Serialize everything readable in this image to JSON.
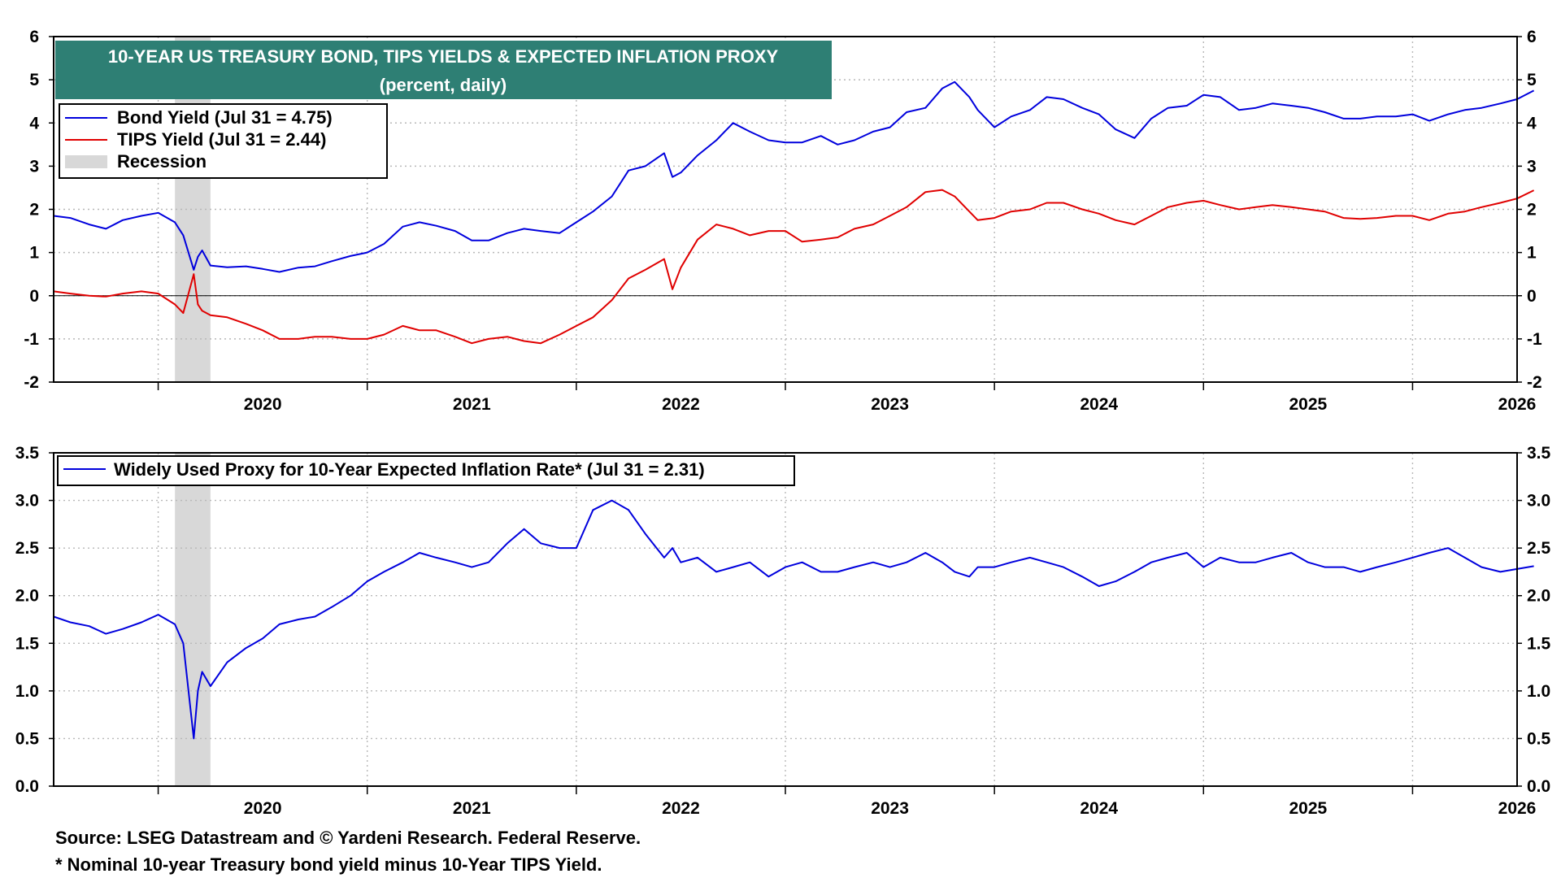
{
  "chart_data": [
    {
      "type": "line",
      "title": "10-YEAR US TREASURY BOND, TIPS YIELDS & EXPECTED INFLATION PROXY",
      "subtitle": "(percent, daily)",
      "ylim": [
        -2,
        6
      ],
      "yticks": [
        "-2",
        "-1",
        "0",
        "1",
        "2",
        "3",
        "4",
        "5",
        "6"
      ],
      "xlim": [
        2019.5,
        2026.5
      ],
      "xtick_labels": [
        "2020",
        "2021",
        "2022",
        "2023",
        "2024",
        "2025",
        "2026"
      ],
      "grid": true,
      "legend_position": "top-left",
      "recession_label": "Recession",
      "recession": [
        2020.08,
        2020.25
      ],
      "series": [
        {
          "name": "Bond Yield (Jul 31 = 4.75)",
          "color": "#0000dd",
          "x": [
            2019.5,
            2019.58,
            2019.67,
            2019.75,
            2019.83,
            2019.92,
            2020.0,
            2020.08,
            2020.12,
            2020.17,
            2020.19,
            2020.21,
            2020.25,
            2020.33,
            2020.42,
            2020.5,
            2020.58,
            2020.67,
            2020.75,
            2020.83,
            2020.92,
            2021.0,
            2021.08,
            2021.17,
            2021.25,
            2021.33,
            2021.42,
            2021.5,
            2021.58,
            2021.67,
            2021.75,
            2021.83,
            2021.92,
            2022.0,
            2022.08,
            2022.17,
            2022.25,
            2022.33,
            2022.42,
            2022.46,
            2022.5,
            2022.58,
            2022.67,
            2022.75,
            2022.83,
            2022.92,
            2023.0,
            2023.08,
            2023.17,
            2023.25,
            2023.33,
            2023.42,
            2023.5,
            2023.58,
            2023.67,
            2023.75,
            2023.81,
            2023.88,
            2023.92,
            2024.0,
            2024.08,
            2024.17,
            2024.25,
            2024.33,
            2024.42,
            2024.5,
            2024.58,
            2024.67,
            2024.75,
            2024.83,
            2024.92,
            2025.0,
            2025.08,
            2025.17,
            2025.25,
            2025.33,
            2025.42,
            2025.5,
            2025.58,
            2025.67,
            2025.75,
            2025.83,
            2025.92,
            2026.0,
            2026.08,
            2026.17,
            2026.25,
            2026.33,
            2026.42,
            2026.5,
            2026.58
          ],
          "values": [
            1.85,
            1.8,
            1.65,
            1.55,
            1.75,
            1.85,
            1.92,
            1.7,
            1.4,
            0.6,
            0.9,
            1.05,
            0.7,
            0.66,
            0.68,
            0.62,
            0.55,
            0.65,
            0.68,
            0.8,
            0.92,
            1.0,
            1.2,
            1.6,
            1.7,
            1.62,
            1.5,
            1.28,
            1.28,
            1.45,
            1.55,
            1.5,
            1.45,
            1.7,
            1.95,
            2.3,
            2.9,
            3.0,
            3.3,
            2.75,
            2.85,
            3.25,
            3.6,
            4.0,
            3.8,
            3.6,
            3.55,
            3.55,
            3.7,
            3.5,
            3.6,
            3.8,
            3.9,
            4.25,
            4.35,
            4.8,
            4.95,
            4.6,
            4.3,
            3.9,
            4.15,
            4.3,
            4.6,
            4.55,
            4.35,
            4.2,
            3.85,
            3.65,
            4.1,
            4.35,
            4.4,
            4.65,
            4.6,
            4.3,
            4.35,
            4.45,
            4.4,
            4.35,
            4.25,
            4.1,
            4.1,
            4.15,
            4.15,
            4.2,
            4.05,
            4.2,
            4.3,
            4.35,
            4.45,
            4.55,
            4.75
          ]
        },
        {
          "name": "TIPS Yield (Jul 31 = 2.44)",
          "color": "#e00000",
          "x": [
            2019.5,
            2019.58,
            2019.67,
            2019.75,
            2019.83,
            2019.92,
            2020.0,
            2020.08,
            2020.12,
            2020.17,
            2020.19,
            2020.21,
            2020.25,
            2020.33,
            2020.42,
            2020.5,
            2020.58,
            2020.67,
            2020.75,
            2020.83,
            2020.92,
            2021.0,
            2021.08,
            2021.17,
            2021.25,
            2021.33,
            2021.42,
            2021.5,
            2021.58,
            2021.67,
            2021.75,
            2021.83,
            2021.92,
            2022.0,
            2022.08,
            2022.17,
            2022.25,
            2022.33,
            2022.42,
            2022.46,
            2022.5,
            2022.58,
            2022.67,
            2022.75,
            2022.83,
            2022.92,
            2023.0,
            2023.08,
            2023.17,
            2023.25,
            2023.33,
            2023.42,
            2023.5,
            2023.58,
            2023.67,
            2023.75,
            2023.81,
            2023.88,
            2023.92,
            2024.0,
            2024.08,
            2024.17,
            2024.25,
            2024.33,
            2024.42,
            2024.5,
            2024.58,
            2024.67,
            2024.75,
            2024.83,
            2024.92,
            2025.0,
            2025.08,
            2025.17,
            2025.25,
            2025.33,
            2025.42,
            2025.5,
            2025.58,
            2025.67,
            2025.75,
            2025.83,
            2025.92,
            2026.0,
            2026.08,
            2026.17,
            2026.25,
            2026.33,
            2026.42,
            2026.5,
            2026.58
          ],
          "values": [
            0.1,
            0.05,
            0.0,
            -0.02,
            0.05,
            0.1,
            0.05,
            -0.2,
            -0.4,
            0.5,
            -0.2,
            -0.35,
            -0.45,
            -0.5,
            -0.65,
            -0.8,
            -1.0,
            -1.0,
            -0.95,
            -0.95,
            -1.0,
            -1.0,
            -0.9,
            -0.7,
            -0.8,
            -0.8,
            -0.95,
            -1.1,
            -1.0,
            -0.95,
            -1.05,
            -1.1,
            -0.9,
            -0.7,
            -0.5,
            -0.1,
            0.4,
            0.6,
            0.85,
            0.15,
            0.65,
            1.3,
            1.65,
            1.55,
            1.4,
            1.5,
            1.5,
            1.25,
            1.3,
            1.35,
            1.55,
            1.65,
            1.85,
            2.05,
            2.4,
            2.45,
            2.3,
            1.95,
            1.75,
            1.8,
            1.95,
            2.0,
            2.15,
            2.15,
            2.0,
            1.9,
            1.75,
            1.65,
            1.85,
            2.05,
            2.15,
            2.2,
            2.1,
            2.0,
            2.05,
            2.1,
            2.05,
            2.0,
            1.95,
            1.8,
            1.78,
            1.8,
            1.85,
            1.85,
            1.75,
            1.9,
            1.95,
            2.05,
            2.15,
            2.25,
            2.44
          ]
        }
      ]
    },
    {
      "type": "line",
      "ylim": [
        0,
        3.5
      ],
      "yticks": [
        "0.0",
        "0.5",
        "1.0",
        "1.5",
        "2.0",
        "2.5",
        "3.0",
        "3.5"
      ],
      "xlim": [
        2019.5,
        2026.5
      ],
      "xtick_labels": [
        "2020",
        "2021",
        "2022",
        "2023",
        "2024",
        "2025",
        "2026"
      ],
      "grid": true,
      "legend_position": "top-left",
      "recession": [
        2020.08,
        2020.25
      ],
      "series": [
        {
          "name": "Widely Used Proxy for 10-Year Expected Inflation Rate* (Jul 31 = 2.31)",
          "color": "#0000dd",
          "x": [
            2019.5,
            2019.58,
            2019.67,
            2019.75,
            2019.83,
            2019.92,
            2020.0,
            2020.08,
            2020.12,
            2020.17,
            2020.19,
            2020.21,
            2020.25,
            2020.33,
            2020.42,
            2020.5,
            2020.58,
            2020.67,
            2020.75,
            2020.83,
            2020.92,
            2021.0,
            2021.08,
            2021.17,
            2021.25,
            2021.33,
            2021.42,
            2021.5,
            2021.58,
            2021.67,
            2021.75,
            2021.83,
            2021.92,
            2022.0,
            2022.08,
            2022.17,
            2022.25,
            2022.33,
            2022.42,
            2022.46,
            2022.5,
            2022.58,
            2022.67,
            2022.75,
            2022.83,
            2022.92,
            2023.0,
            2023.08,
            2023.17,
            2023.25,
            2023.33,
            2023.42,
            2023.5,
            2023.58,
            2023.67,
            2023.75,
            2023.81,
            2023.88,
            2023.92,
            2024.0,
            2024.08,
            2024.17,
            2024.25,
            2024.33,
            2024.42,
            2024.5,
            2024.58,
            2024.67,
            2024.75,
            2024.83,
            2024.92,
            2025.0,
            2025.08,
            2025.17,
            2025.25,
            2025.33,
            2025.42,
            2025.5,
            2025.58,
            2025.67,
            2025.75,
            2025.83,
            2025.92,
            2026.0,
            2026.08,
            2026.17,
            2026.25,
            2026.33,
            2026.42,
            2026.5,
            2026.58
          ],
          "values": [
            1.78,
            1.72,
            1.68,
            1.6,
            1.65,
            1.72,
            1.8,
            1.7,
            1.5,
            0.5,
            1.0,
            1.2,
            1.05,
            1.3,
            1.45,
            1.55,
            1.7,
            1.75,
            1.78,
            1.88,
            2.0,
            2.15,
            2.25,
            2.35,
            2.45,
            2.4,
            2.35,
            2.3,
            2.35,
            2.55,
            2.7,
            2.55,
            2.5,
            2.5,
            2.9,
            3.0,
            2.9,
            2.65,
            2.4,
            2.5,
            2.35,
            2.4,
            2.25,
            2.3,
            2.35,
            2.2,
            2.3,
            2.35,
            2.25,
            2.25,
            2.3,
            2.35,
            2.3,
            2.35,
            2.45,
            2.35,
            2.25,
            2.2,
            2.3,
            2.3,
            2.35,
            2.4,
            2.35,
            2.3,
            2.2,
            2.1,
            2.15,
            2.25,
            2.35,
            2.4,
            2.45,
            2.3,
            2.4,
            2.35,
            2.35,
            2.4,
            2.45,
            2.35,
            2.3,
            2.3,
            2.25,
            2.3,
            2.35,
            2.4,
            2.45,
            2.5,
            2.4,
            2.3,
            2.25,
            2.28,
            2.31
          ]
        }
      ]
    }
  ],
  "footnotes": {
    "source": "Source: LSEG Datastream and © Yardeni Research. Federal Reserve.",
    "note": "* Nominal 10-year Treasury bond yield minus 10-Year TIPS Yield."
  }
}
